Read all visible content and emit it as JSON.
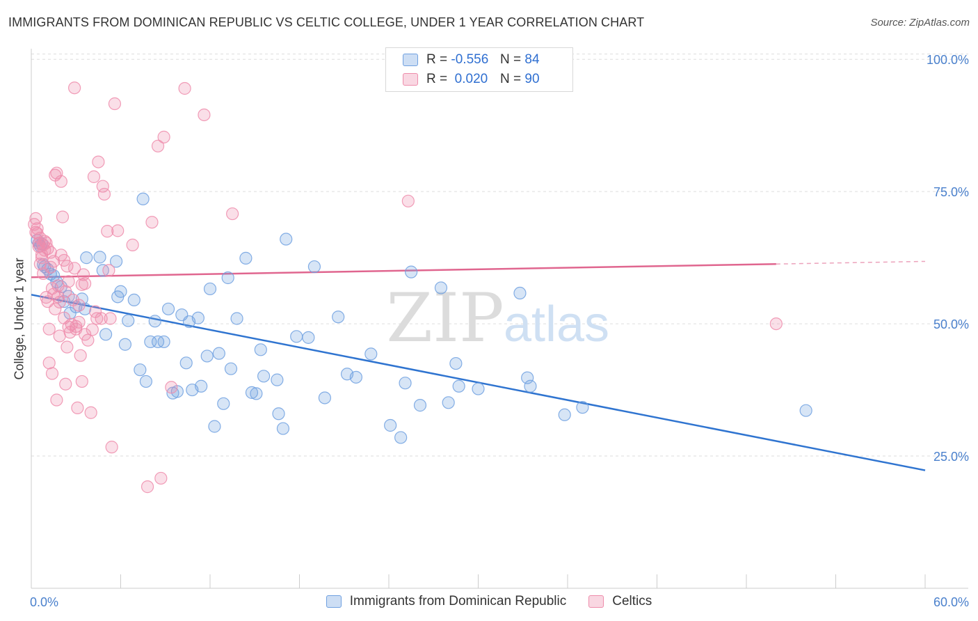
{
  "title": "IMMIGRANTS FROM DOMINICAN REPUBLIC VS CELTIC COLLEGE, UNDER 1 YEAR CORRELATION CHART",
  "source": "Source: ZipAtlas.com",
  "watermark": {
    "zip": "ZIP",
    "atlas": "atlas"
  },
  "legend": {
    "rows": [
      {
        "r_label": "R =",
        "r_value": "-0.556",
        "n_label": "N =",
        "n_value": "84",
        "color": "#6fa0e0"
      },
      {
        "r_label": "R =",
        "r_value": "0.020",
        "n_label": "N =",
        "n_value": "90",
        "color": "#ee8cab"
      }
    ]
  },
  "bottom_legend": [
    {
      "label": "Immigrants from Dominican Republic",
      "color": "#6fa0e0"
    },
    {
      "label": "Celtics",
      "color": "#ee8cab"
    }
  ],
  "chart_data": {
    "type": "scatter",
    "title": "IMMIGRANTS FROM DOMINICAN REPUBLIC VS CELTIC COLLEGE, UNDER 1 YEAR CORRELATION CHART",
    "xlabel": "",
    "ylabel": "College, Under 1 year",
    "xlim": [
      0,
      60
    ],
    "ylim": [
      0,
      102
    ],
    "x_tick_labels": [
      "0.0%",
      "60.0%"
    ],
    "y_tick_labels": [
      "25.0%",
      "50.0%",
      "75.0%",
      "100.0%"
    ],
    "y_ticks": [
      25,
      50,
      75,
      100
    ],
    "grid": "horizontal dashed",
    "legend_position": "top-center",
    "series": [
      {
        "name": "Immigrants from Dominican Republic",
        "color": "#6fa0e0",
        "trend": {
          "x0": 0,
          "y0": 55.5,
          "x1": 60,
          "y1": 22.3
        },
        "points": [
          [
            0.4,
            65.8
          ],
          [
            0.5,
            65.2
          ],
          [
            0.6,
            64.7
          ],
          [
            0.7,
            65.1
          ],
          [
            0.8,
            61.2
          ],
          [
            0.9,
            60.8
          ],
          [
            1.1,
            60.3
          ],
          [
            1.3,
            59.4
          ],
          [
            1.5,
            59.1
          ],
          [
            1.7,
            57.9
          ],
          [
            2.0,
            57.0
          ],
          [
            2.2,
            54.2
          ],
          [
            2.5,
            55.2
          ],
          [
            2.6,
            52.0
          ],
          [
            3.0,
            53.2
          ],
          [
            3.4,
            54.7
          ],
          [
            3.6,
            52.8
          ],
          [
            3.7,
            62.5
          ],
          [
            4.6,
            62.6
          ],
          [
            4.8,
            60.1
          ],
          [
            5.0,
            48.0
          ],
          [
            5.7,
            61.8
          ],
          [
            5.8,
            55.1
          ],
          [
            6.0,
            56.1
          ],
          [
            6.3,
            46.1
          ],
          [
            6.5,
            50.6
          ],
          [
            6.9,
            54.5
          ],
          [
            7.3,
            41.3
          ],
          [
            7.5,
            73.6
          ],
          [
            7.7,
            39.1
          ],
          [
            8.0,
            46.6
          ],
          [
            8.3,
            50.5
          ],
          [
            8.5,
            46.6
          ],
          [
            8.9,
            46.6
          ],
          [
            9.2,
            52.8
          ],
          [
            9.5,
            36.9
          ],
          [
            9.8,
            37.2
          ],
          [
            10.1,
            51.7
          ],
          [
            10.4,
            42.6
          ],
          [
            10.6,
            50.4
          ],
          [
            10.8,
            37.5
          ],
          [
            11.2,
            51.1
          ],
          [
            11.4,
            38.2
          ],
          [
            11.8,
            43.9
          ],
          [
            12.0,
            56.6
          ],
          [
            12.3,
            30.6
          ],
          [
            12.6,
            44.4
          ],
          [
            12.9,
            34.9
          ],
          [
            13.2,
            58.7
          ],
          [
            13.4,
            41.5
          ],
          [
            13.8,
            51.0
          ],
          [
            14.4,
            62.4
          ],
          [
            14.8,
            37.0
          ],
          [
            15.1,
            36.8
          ],
          [
            15.4,
            45.1
          ],
          [
            15.6,
            40.1
          ],
          [
            16.5,
            39.4
          ],
          [
            16.6,
            33.0
          ],
          [
            16.9,
            30.2
          ],
          [
            17.1,
            66.0
          ],
          [
            17.8,
            47.6
          ],
          [
            18.6,
            47.4
          ],
          [
            19.0,
            60.8
          ],
          [
            19.7,
            36.0
          ],
          [
            20.6,
            51.3
          ],
          [
            21.2,
            40.5
          ],
          [
            21.8,
            39.9
          ],
          [
            22.8,
            44.3
          ],
          [
            24.1,
            30.8
          ],
          [
            24.8,
            28.5
          ],
          [
            25.1,
            38.8
          ],
          [
            25.5,
            59.8
          ],
          [
            26.1,
            34.6
          ],
          [
            27.5,
            56.8
          ],
          [
            28.0,
            35.1
          ],
          [
            28.5,
            42.5
          ],
          [
            28.7,
            38.2
          ],
          [
            30.0,
            37.7
          ],
          [
            32.8,
            55.8
          ],
          [
            33.3,
            39.8
          ],
          [
            33.5,
            38.2
          ],
          [
            35.8,
            32.8
          ],
          [
            37.0,
            34.2
          ],
          [
            52.0,
            33.6
          ]
        ]
      },
      {
        "name": "Celtics",
        "color": "#ee8cab",
        "trend": {
          "x0": 0,
          "y0": 58.8,
          "x1": 50,
          "y1": 61.3,
          "dash_to_x": 60,
          "dash_to_y": 61.8
        },
        "points": [
          [
            0.2,
            68.8
          ],
          [
            0.3,
            69.9
          ],
          [
            0.3,
            67.3
          ],
          [
            0.4,
            68.0
          ],
          [
            0.5,
            64.6
          ],
          [
            0.5,
            65.2
          ],
          [
            0.6,
            61.3
          ],
          [
            0.7,
            62.5
          ],
          [
            0.8,
            64.9
          ],
          [
            0.9,
            63.9
          ],
          [
            1.0,
            65.3
          ],
          [
            1.0,
            55.0
          ],
          [
            1.1,
            54.2
          ],
          [
            1.2,
            49.0
          ],
          [
            1.2,
            42.6
          ],
          [
            1.3,
            63.5
          ],
          [
            1.3,
            60.7
          ],
          [
            1.4,
            56.7
          ],
          [
            1.4,
            40.6
          ],
          [
            1.5,
            55.6
          ],
          [
            1.6,
            78.1
          ],
          [
            1.7,
            78.5
          ],
          [
            1.7,
            35.6
          ],
          [
            1.8,
            55.1
          ],
          [
            1.9,
            54.1
          ],
          [
            2.0,
            76.9
          ],
          [
            2.1,
            70.2
          ],
          [
            2.2,
            62.0
          ],
          [
            2.2,
            51.1
          ],
          [
            2.3,
            38.6
          ],
          [
            2.4,
            45.6
          ],
          [
            2.4,
            60.9
          ],
          [
            2.5,
            49.4
          ],
          [
            2.6,
            48.4
          ],
          [
            2.7,
            49.9
          ],
          [
            2.8,
            54.5
          ],
          [
            2.9,
            94.6
          ],
          [
            3.0,
            49.0
          ],
          [
            3.0,
            49.5
          ],
          [
            3.1,
            34.1
          ],
          [
            3.2,
            50.3
          ],
          [
            3.3,
            44.0
          ],
          [
            3.4,
            57.4
          ],
          [
            3.4,
            39.1
          ],
          [
            3.5,
            59.3
          ],
          [
            3.6,
            57.6
          ],
          [
            4.0,
            33.2
          ],
          [
            4.1,
            48.9
          ],
          [
            4.2,
            77.8
          ],
          [
            4.4,
            51.0
          ],
          [
            4.5,
            80.6
          ],
          [
            4.7,
            51.0
          ],
          [
            4.8,
            76.0
          ],
          [
            4.9,
            74.5
          ],
          [
            5.1,
            67.5
          ],
          [
            5.2,
            60.1
          ],
          [
            5.3,
            51.0
          ],
          [
            5.4,
            26.7
          ],
          [
            5.6,
            91.6
          ],
          [
            5.8,
            67.6
          ],
          [
            6.8,
            64.9
          ],
          [
            7.8,
            19.2
          ],
          [
            8.1,
            69.2
          ],
          [
            8.5,
            83.6
          ],
          [
            8.7,
            20.8
          ],
          [
            8.9,
            85.3
          ],
          [
            9.4,
            38.0
          ],
          [
            10.3,
            94.5
          ],
          [
            11.6,
            89.5
          ],
          [
            13.5,
            70.8
          ],
          [
            25.3,
            73.2
          ],
          [
            50.0,
            50.0
          ],
          [
            0.4,
            67.1
          ],
          [
            0.6,
            66.2
          ],
          [
            0.9,
            65.6
          ],
          [
            1.1,
            64.2
          ],
          [
            1.5,
            61.8
          ],
          [
            2.0,
            63.0
          ],
          [
            2.5,
            58.0
          ],
          [
            3.2,
            53.5
          ],
          [
            3.8,
            46.9
          ],
          [
            4.3,
            52.3
          ],
          [
            1.8,
            57.2
          ],
          [
            2.9,
            60.5
          ],
          [
            0.8,
            59.5
          ],
          [
            1.6,
            52.8
          ],
          [
            2.3,
            56.1
          ],
          [
            3.6,
            48.0
          ],
          [
            0.7,
            63.1
          ],
          [
            1.9,
            47.7
          ]
        ]
      }
    ]
  }
}
